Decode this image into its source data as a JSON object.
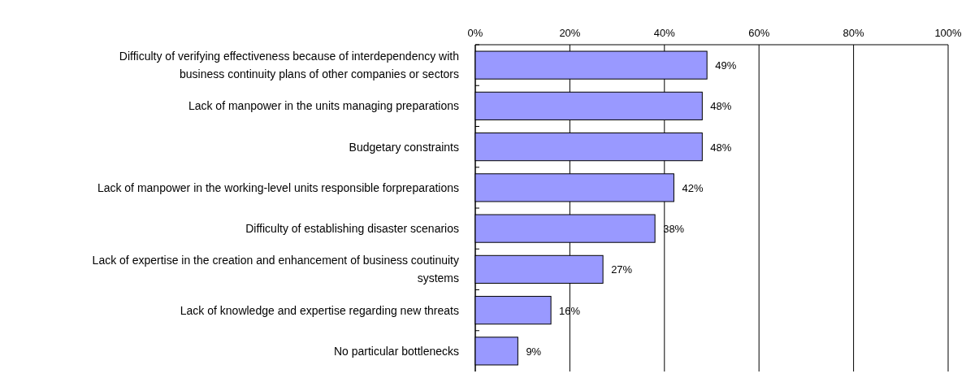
{
  "chart_data": {
    "type": "bar",
    "orientation": "horizontal",
    "categories": [
      "Difficulty of verifying effectiveness because of interdependency with business continuity plans of other companies or sectors",
      "Lack of manpower  in the units managing preparations",
      "Budgetary constraints",
      "Lack of manpower in the working-level units responsible forpreparations",
      "Difficulty of establishing disaster scenarios",
      "Lack of expertise in the creation and enhancement of business coutinuity systems",
      "Lack of knowledge  and expertise regarding new threats",
      "No particular bottlenecks"
    ],
    "values": [
      49,
      48,
      48,
      42,
      38,
      27,
      16,
      9
    ],
    "value_labels": [
      "49%",
      "48%",
      "48%",
      "42%",
      "38%",
      "27%",
      "16%",
      "9%"
    ],
    "color": "#9999ff",
    "xlim": [
      0,
      100
    ],
    "xticks": [
      {
        "value": 0,
        "label": "0%"
      },
      {
        "value": 20,
        "label": "20%"
      },
      {
        "value": 40,
        "label": "40%"
      },
      {
        "value": 60,
        "label": "60%"
      },
      {
        "value": 80,
        "label": "80%"
      },
      {
        "value": 100,
        "label": "100%"
      }
    ],
    "grid": "x"
  }
}
